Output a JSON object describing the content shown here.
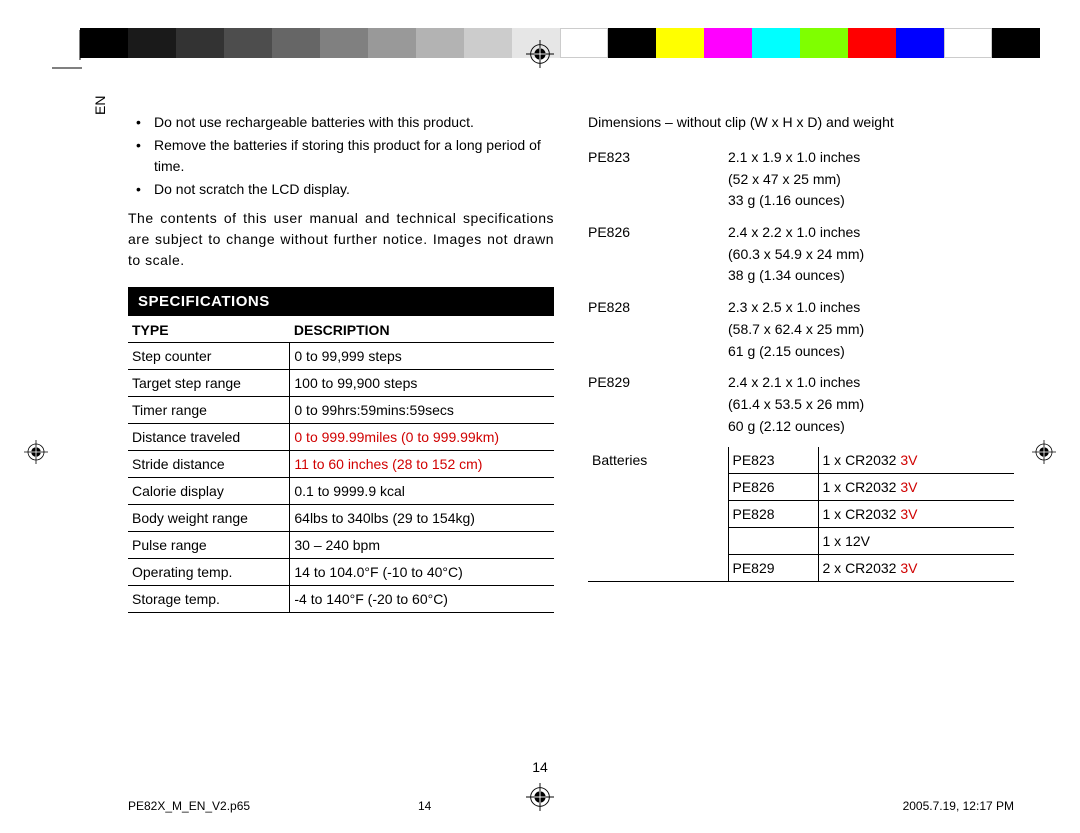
{
  "colorbar": [
    "#000000",
    "#1a1a1a",
    "#333333",
    "#4d4d4d",
    "#666666",
    "#808080",
    "#999999",
    "#b3b3b3",
    "#cccccc",
    "#e6e6e6",
    "#ffffff",
    "#000000",
    "#ffff00",
    "#ff00ff",
    "#00ffff",
    "#7fff00",
    "#ff0000",
    "#0000ff",
    "#ffffff",
    "#000000"
  ],
  "side_label": "EN",
  "bullets": [
    "Do not use rechargeable batteries with this product.",
    "Remove the batteries if storing this product for a long period of time.",
    "Do not scratch the LCD display."
  ],
  "disclaimer": "The contents of this user manual and technical specifications are subject to change without further notice. Images not drawn to scale.",
  "section_title": "SPECIFICATIONS",
  "spec_headers": {
    "type": "TYPE",
    "desc": "DESCRIPTION"
  },
  "spec_rows": [
    {
      "type": "Step counter",
      "desc": "0 to 99,999 steps",
      "red": false
    },
    {
      "type": "Target step range",
      "desc": "100 to 99,900 steps",
      "red": false
    },
    {
      "type": "Timer range",
      "desc": "0 to 99hrs:59mins:59secs",
      "red": false
    },
    {
      "type": "Distance traveled",
      "desc": "0 to 999.99miles (0 to 999.99km)",
      "red": true
    },
    {
      "type": "Stride distance",
      "desc": "11 to 60 inches (28 to 152 cm)",
      "red": true
    },
    {
      "type": "Calorie display",
      "desc": "0.1 to 9999.9 kcal",
      "red": false
    },
    {
      "type": "Body weight range",
      "desc": "64lbs to 340lbs (29 to 154kg)",
      "red": false
    },
    {
      "type": "Pulse range",
      "desc": "30 – 240 bpm",
      "red": false
    },
    {
      "type": "Operating temp.",
      "desc": "14 to 104.0°F (-10 to 40°C)",
      "red": false
    },
    {
      "type": "Storage temp.",
      "desc": "-4 to 140°F (-20 to 60°C)",
      "red": false
    }
  ],
  "dims_title": "Dimensions – without clip (W x H x D) and weight",
  "dims": [
    {
      "model": "PE823",
      "lines": [
        "2.1 x 1.9 x 1.0 inches",
        "(52 x 47 x 25 mm)",
        "33 g (1.16 ounces)"
      ]
    },
    {
      "model": "PE826",
      "lines": [
        "2.4 x 2.2 x 1.0 inches",
        "(60.3 x 54.9 x 24 mm)",
        "38 g (1.34 ounces)"
      ]
    },
    {
      "model": "PE828",
      "lines": [
        "2.3 x 2.5 x 1.0 inches",
        "(58.7 x 62.4 x 25 mm)",
        "61 g (2.15 ounces)"
      ]
    },
    {
      "model": "PE829",
      "lines": [
        "2.4 x 2.1 x 1.0 inches",
        "(61.4 x 53.5 x 26 mm)",
        "60 g (2.12 ounces)"
      ]
    }
  ],
  "batt_label": "Batteries",
  "batteries": [
    {
      "model": "PE823",
      "vals": [
        {
          "t": "1 x CR2032 ",
          "r": "3V"
        }
      ]
    },
    {
      "model": "PE826",
      "vals": [
        {
          "t": "1 x CR2032 ",
          "r": "3V"
        }
      ]
    },
    {
      "model": "PE828",
      "vals": [
        {
          "t": "1 x CR2032 ",
          "r": "3V"
        },
        {
          "t": "1 x 12V",
          "r": ""
        }
      ]
    },
    {
      "model": "PE829",
      "vals": [
        {
          "t": "2 x CR2032 ",
          "r": "3V"
        }
      ]
    }
  ],
  "page_number": "14",
  "footer": {
    "file": "PE82X_M_EN_V2.p65",
    "mid": "14",
    "date": "2005.7.19, 12:17 PM"
  }
}
